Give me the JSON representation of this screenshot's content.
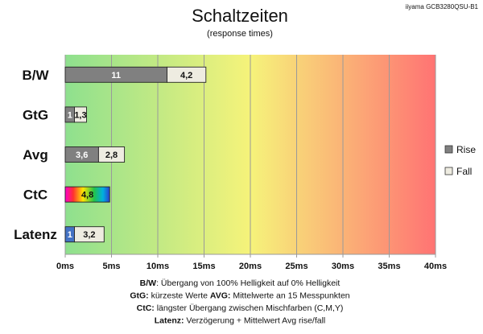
{
  "header": {
    "title": "Schaltzeiten",
    "subtitle": "(response times)",
    "model": "iiyama GCB3280QSU-B1"
  },
  "legend": {
    "rise": "Rise",
    "fall": "Fall",
    "position": "right"
  },
  "footnotes": [
    {
      "parts": [
        {
          "t": "B/W",
          "b": true
        },
        {
          "t": ":  Übergang von 100% Helligkeit auf 0% Helligkeit",
          "b": false
        }
      ]
    },
    {
      "parts": [
        {
          "t": "GtG:",
          "b": true
        },
        {
          "t": " kürzeste  Werte        ",
          "b": false
        },
        {
          "t": "AVG:",
          "b": true
        },
        {
          "t": " Mittelwerte  an 15 Messpunkten",
          "b": false
        }
      ]
    },
    {
      "parts": [
        {
          "t": "CtC:",
          "b": true
        },
        {
          "t": " längster Übergang  zwischen Mischfarben  (C,M,Y)",
          "b": false
        }
      ]
    },
    {
      "parts": [
        {
          "t": "Latenz:",
          "b": true
        },
        {
          "t": " Verzögerung  + Mittelwert Avg rise/fall",
          "b": false
        }
      ]
    }
  ],
  "colors": {
    "rise": "#808080",
    "fall": "#eeece1",
    "latenz": "#4472c4",
    "grid": "#9a9a9a",
    "bg_start": "#8ee08e",
    "bg_mid": "#f6f37a",
    "bg_end": "#ff7373"
  },
  "chart_data": {
    "type": "bar",
    "orientation": "horizontal",
    "stacked": true,
    "title": "Schaltzeiten",
    "subtitle": "(response times)",
    "categories": [
      "B/W",
      "GtG",
      "Avg",
      "CtC",
      "Latenz"
    ],
    "series": [
      {
        "name": "Rise",
        "values": [
          11,
          1,
          3.6,
          4.8,
          1
        ],
        "labels": [
          "11",
          "1",
          "3,6",
          "4,8",
          "1"
        ]
      },
      {
        "name": "Fall",
        "values": [
          4.2,
          1.3,
          2.8,
          null,
          3.2
        ],
        "labels": [
          "4,2",
          "1,3",
          "2,8",
          "",
          "3,2"
        ]
      }
    ],
    "xlim": [
      0,
      40
    ],
    "xticks": [
      0,
      5,
      10,
      15,
      20,
      25,
      30,
      35,
      40
    ],
    "xtick_labels": [
      "0ms",
      "5ms",
      "10ms",
      "15ms",
      "20ms",
      "25ms",
      "30ms",
      "35ms",
      "40ms"
    ],
    "grid": true,
    "legend": "right"
  }
}
